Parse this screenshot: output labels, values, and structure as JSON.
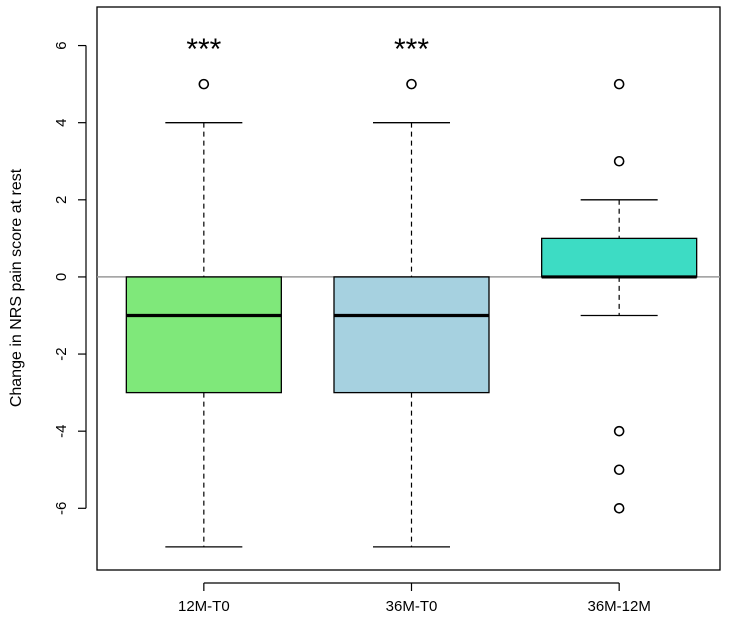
{
  "chart_data": {
    "type": "boxplot",
    "ylabel": "Change in NRS pain score at rest",
    "xlabel": "",
    "ylim": [
      -7.6,
      7.0
    ],
    "yticks": [
      -6,
      -4,
      -2,
      0,
      2,
      4,
      6
    ],
    "reference_line_y": 0,
    "categories": [
      "12M-T0",
      "36M-T0",
      "36M-12M"
    ],
    "boxes": [
      {
        "category": "12M-T0",
        "whisker_low": -7,
        "q1": -3,
        "median": -1,
        "q3": 0,
        "whisker_high": 4,
        "outliers": [
          5
        ],
        "color": "#7fe87a",
        "significance": "***"
      },
      {
        "category": "36M-T0",
        "whisker_low": -7,
        "q1": -3,
        "median": -1,
        "q3": 0,
        "whisker_high": 4,
        "outliers": [
          5
        ],
        "color": "#a6d1e0",
        "significance": "***"
      },
      {
        "category": "36M-12M",
        "whisker_low": -1,
        "q1": 0,
        "median": 0,
        "q3": 1,
        "whisker_high": 2,
        "outliers": [
          5,
          3,
          -4,
          -5,
          -6
        ],
        "color": "#3ddcc4",
        "significance": ""
      }
    ]
  }
}
